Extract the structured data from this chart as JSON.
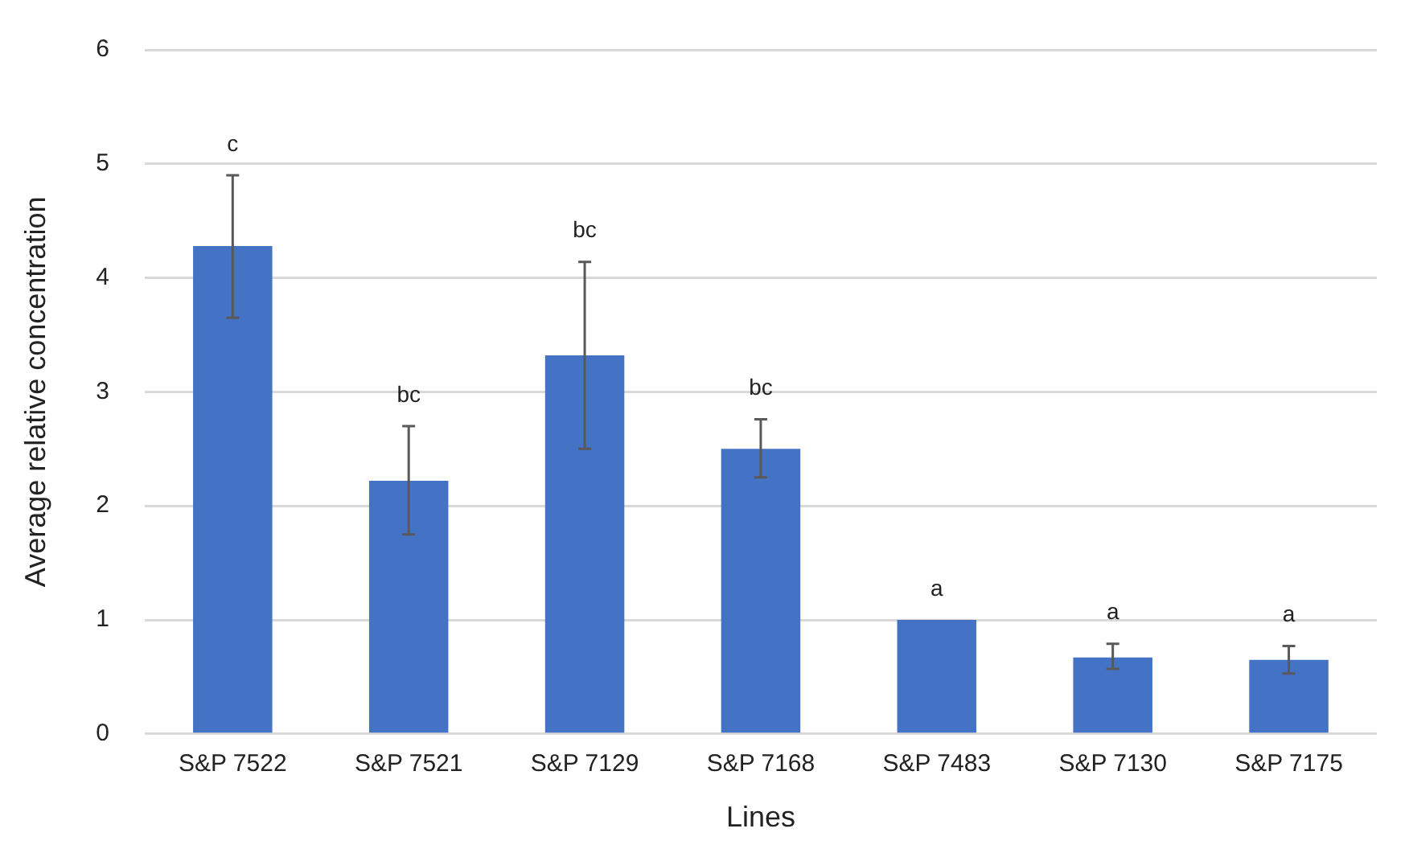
{
  "chart_data": {
    "type": "bar",
    "xlabel": "Lines",
    "ylabel": "Average relative concentration",
    "categories": [
      "S&P 7522",
      "S&P 7521",
      "S&P 7129",
      "S&P 7168",
      "S&P 7483",
      "S&P 7130",
      "S&P 7175"
    ],
    "values": [
      4.28,
      2.22,
      3.32,
      2.5,
      1.0,
      0.67,
      0.65
    ],
    "errors": [
      [
        3.65,
        4.9
      ],
      [
        1.75,
        2.7
      ],
      [
        2.5,
        4.14
      ],
      [
        2.25,
        2.76
      ],
      null,
      [
        0.57,
        0.79
      ],
      [
        0.53,
        0.77
      ]
    ],
    "color": "#4472c4",
    "ylim": [
      0,
      6
    ],
    "yticks": [
      0,
      1,
      2,
      3,
      4,
      5,
      6
    ],
    "grid": "y",
    "legend": false,
    "annotations": [
      {
        "text": "c",
        "x": "S&P 7522",
        "y": 4.9
      },
      {
        "text": "bc",
        "x": "S&P 7521",
        "y": 2.7
      },
      {
        "text": "bc",
        "x": "S&P 7129",
        "y": 4.14
      },
      {
        "text": "bc",
        "x": "S&P 7168",
        "y": 2.76
      },
      {
        "text": "a",
        "x": "S&P 7483",
        "y": 1.0
      },
      {
        "text": "a",
        "x": "S&P 7130",
        "y": 0.79
      },
      {
        "text": "a",
        "x": "S&P 7175",
        "y": 0.77
      }
    ]
  }
}
